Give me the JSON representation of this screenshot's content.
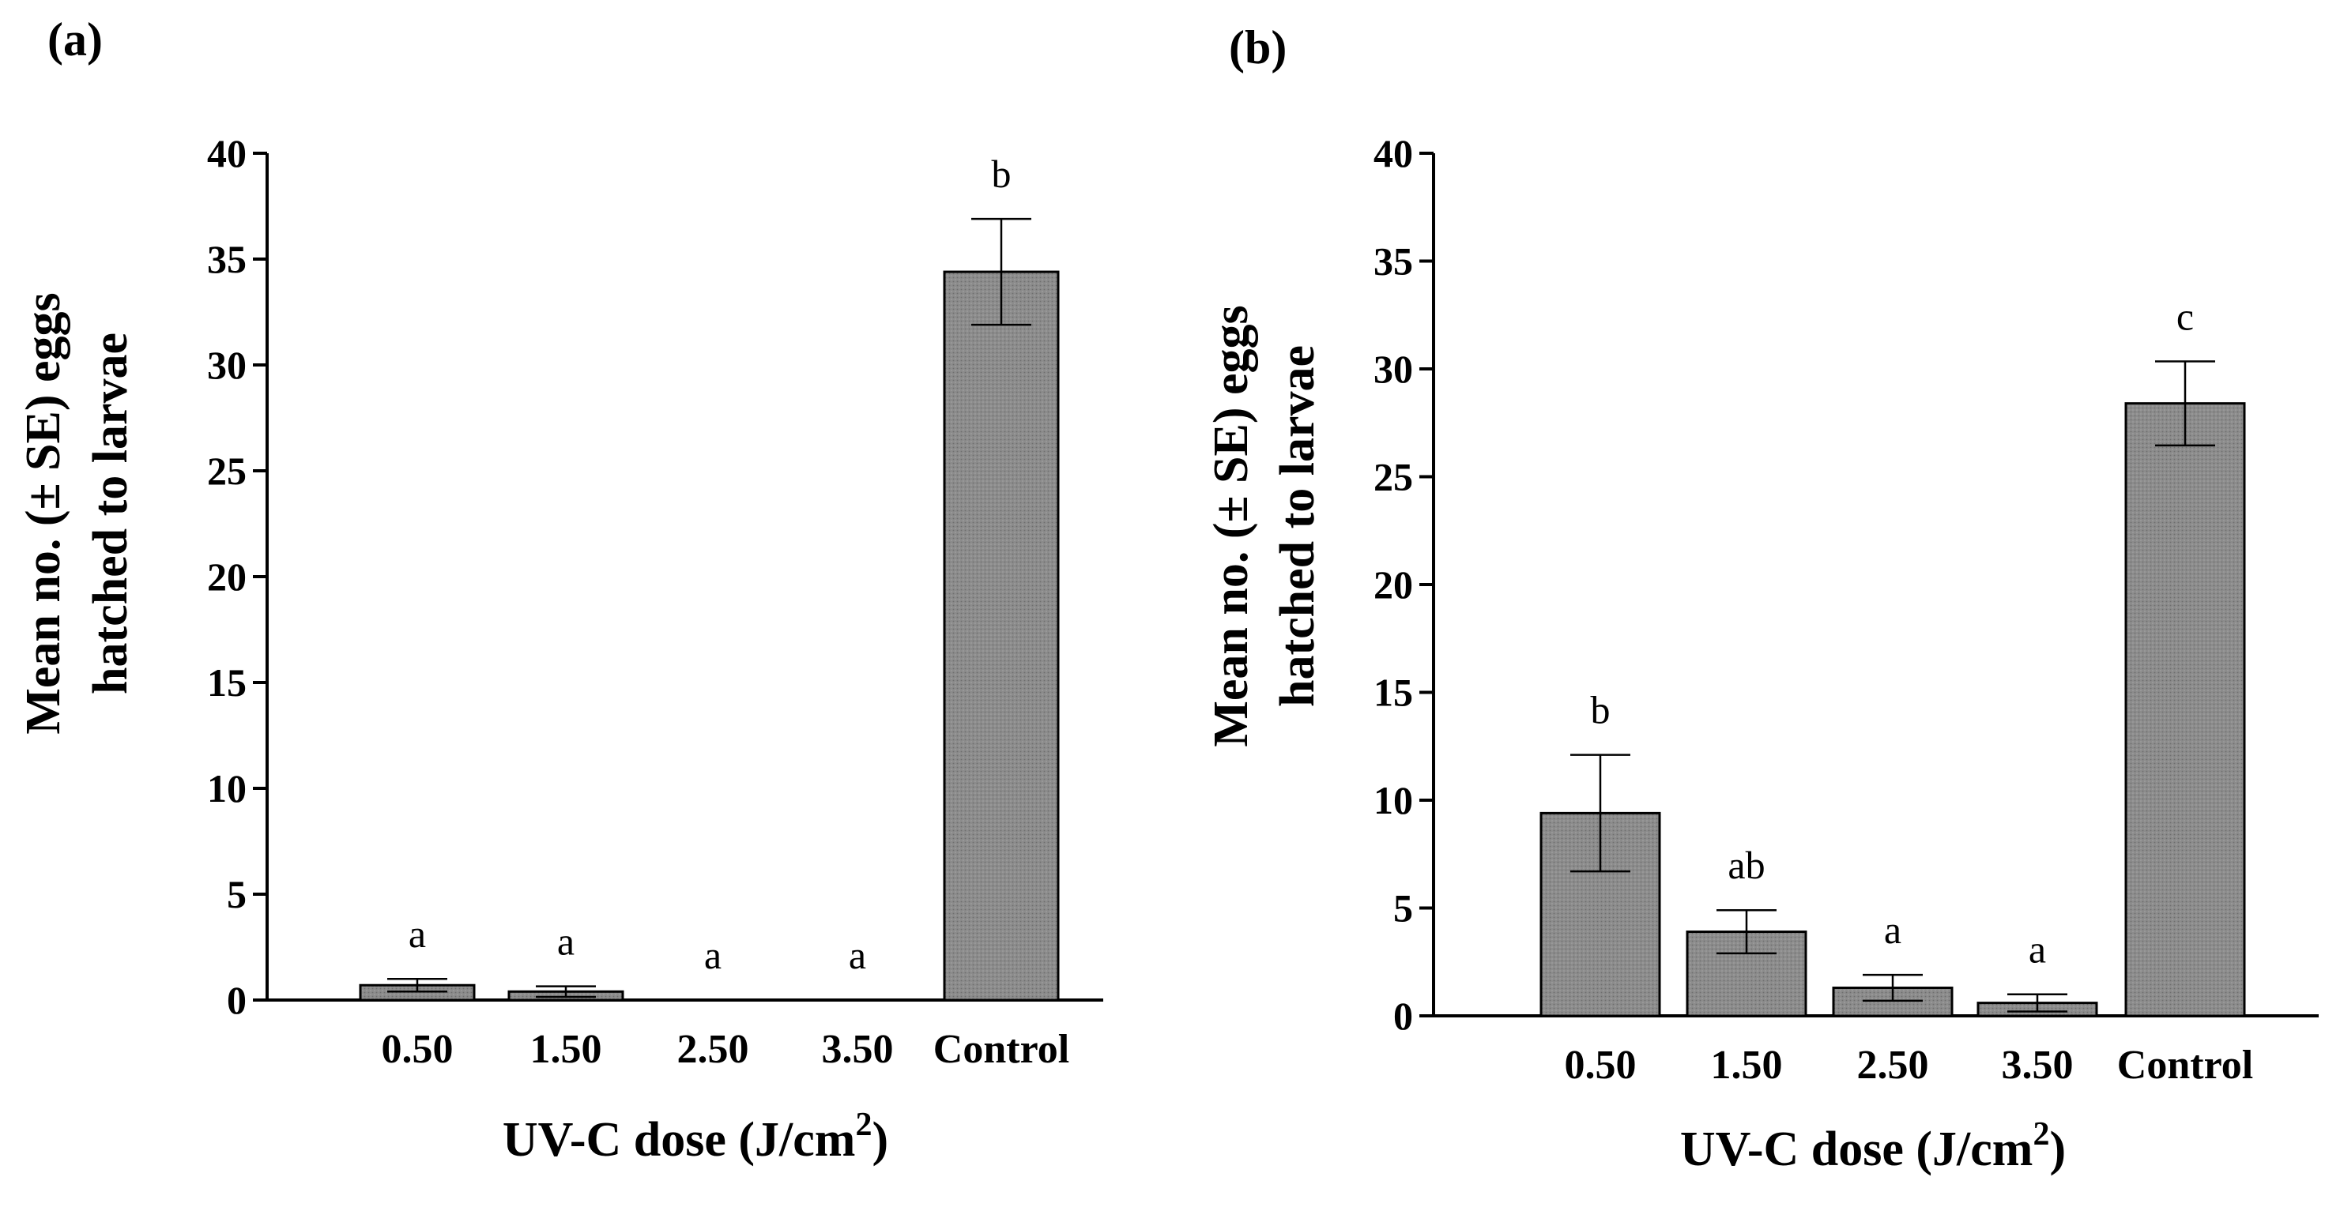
{
  "chart_data": [
    {
      "panel_label": "(a)",
      "type": "bar",
      "categories": [
        "0.50",
        "1.50",
        "2.50",
        "3.50",
        "Control"
      ],
      "values": [
        0.7,
        0.4,
        0,
        0,
        34.4
      ],
      "errors": [
        0.3,
        0.25,
        0,
        0,
        2.5
      ],
      "letters": [
        "a",
        "a",
        "a",
        "a",
        "b"
      ],
      "xlabel": "UV-C dose (J/cm",
      "xlabel_sup": "2",
      "xlabel_end": ")",
      "ylabel_line1": "Mean no. (± SE) eggs",
      "ylabel_line2": "hatched to larvae",
      "ylim": [
        0,
        40
      ],
      "yticks": [
        "0",
        "5",
        "10",
        "15",
        "20",
        "25",
        "30",
        "35",
        "40"
      ],
      "bar_color": "#8a8a8a"
    },
    {
      "panel_label": "(b)",
      "type": "bar",
      "categories": [
        "0.50",
        "1.50",
        "2.50",
        "3.50",
        "Control"
      ],
      "values": [
        9.4,
        3.9,
        1.3,
        0.6,
        28.4
      ],
      "errors": [
        2.7,
        1.0,
        0.6,
        0.4,
        1.95
      ],
      "letters": [
        "b",
        "ab",
        "a",
        "a",
        "c"
      ],
      "xlabel": "UV-C dose (J/cm",
      "xlabel_sup": "2",
      "xlabel_end": ")",
      "ylabel_line1": "Mean no. (± SE) eggs",
      "ylabel_line2": "hatched to larvae",
      "ylim": [
        0,
        40
      ],
      "yticks": [
        "0",
        "5",
        "10",
        "15",
        "20",
        "25",
        "30",
        "35",
        "40"
      ],
      "bar_color": "#8a8a8a"
    }
  ]
}
